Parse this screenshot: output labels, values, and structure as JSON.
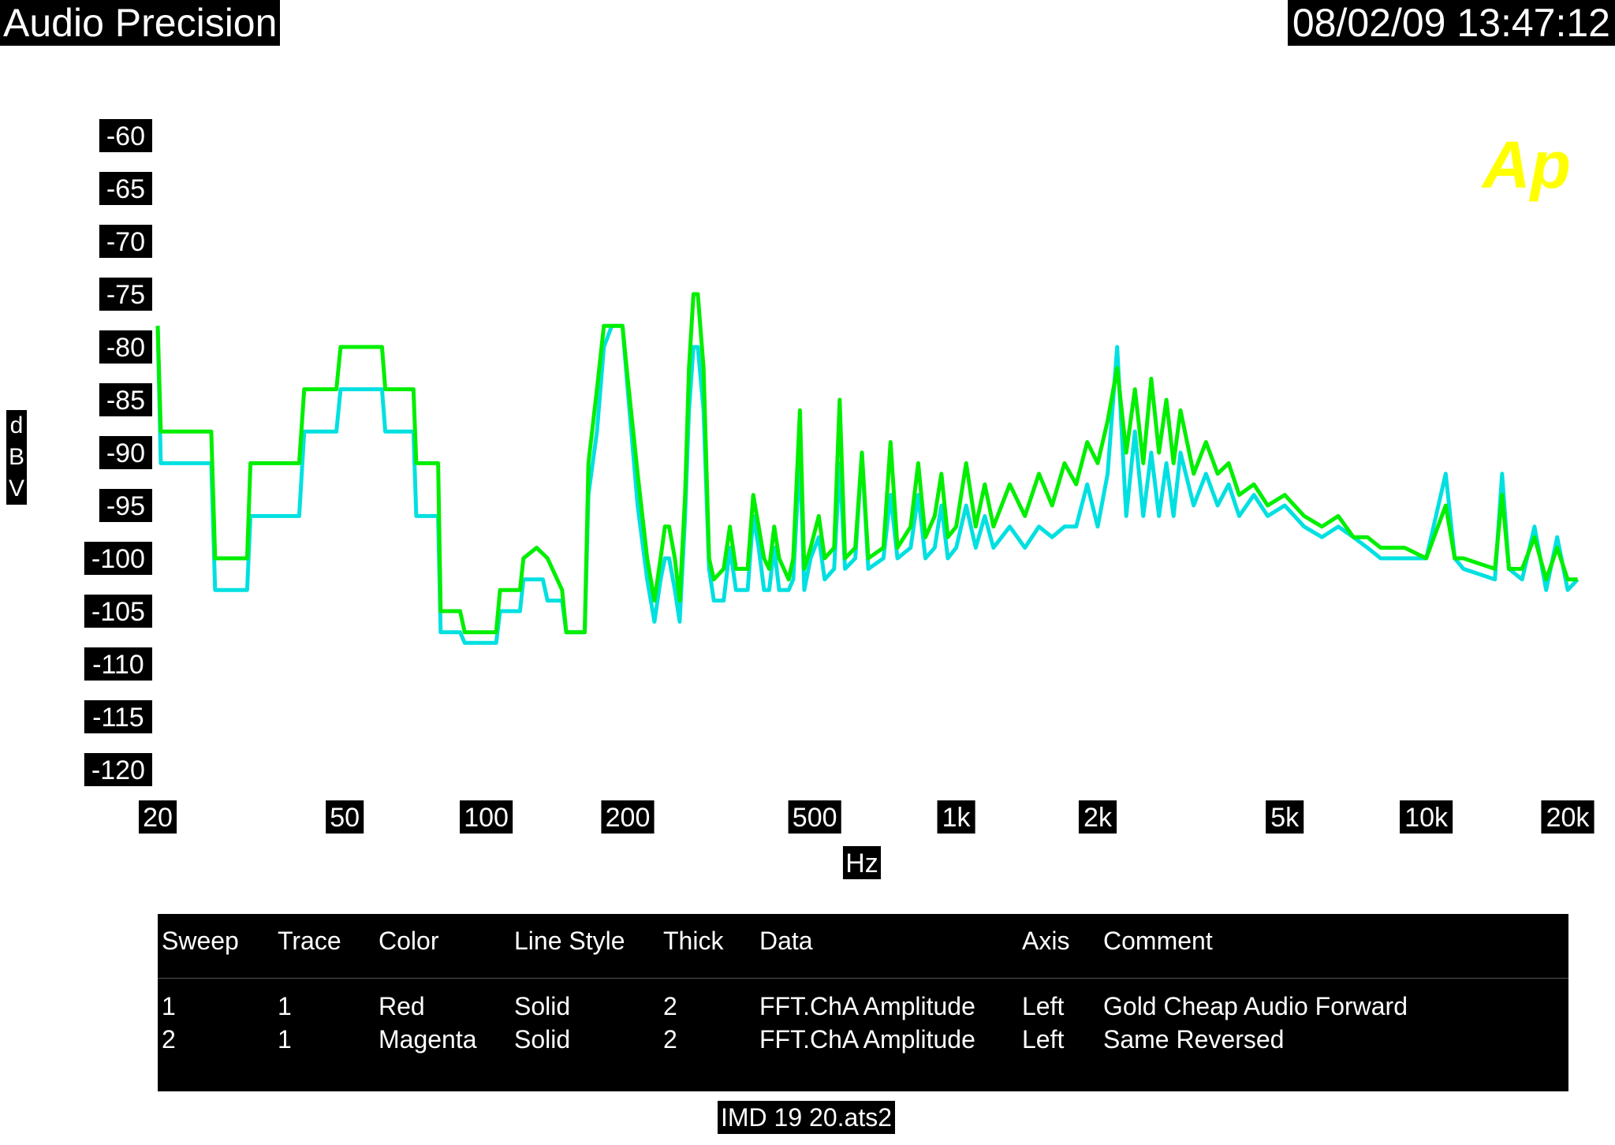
{
  "header": {
    "title": "Audio Precision",
    "timestamp": "08/02/09 13:47:12"
  },
  "logo": {
    "text": "Ap",
    "color": "#ffff00"
  },
  "footer": {
    "filename": "IMD 19 20.ats2"
  },
  "legend": {
    "columns": [
      "Sweep",
      "Trace",
      "Color",
      "Line Style",
      "Thick",
      "Data",
      "Axis",
      "Comment"
    ],
    "rows": [
      [
        "1",
        "1",
        "Red",
        "Solid",
        "2",
        "FFT.ChA Amplitude",
        "Left",
        "Gold Cheap Audio Forward"
      ],
      [
        "2",
        "1",
        "Magenta",
        "Solid",
        "2",
        "FFT.ChA Amplitude",
        "Left",
        "Same Reversed"
      ]
    ]
  },
  "chart_data": {
    "type": "line",
    "title": "",
    "xlabel": "Hz",
    "ylabel": "dBV",
    "xscale": "log",
    "xlim": [
      20,
      20000
    ],
    "ylim": [
      -120,
      -60
    ],
    "grid": false,
    "xticks": [
      {
        "v": 20,
        "label": "20"
      },
      {
        "v": 50,
        "label": "50"
      },
      {
        "v": 100,
        "label": "100"
      },
      {
        "v": 200,
        "label": "200"
      },
      {
        "v": 500,
        "label": "500"
      },
      {
        "v": 1000,
        "label": "1k"
      },
      {
        "v": 2000,
        "label": "2k"
      },
      {
        "v": 5000,
        "label": "5k"
      },
      {
        "v": 10000,
        "label": "10k"
      },
      {
        "v": 20000,
        "label": "20k"
      }
    ],
    "yticks": [
      -60,
      -65,
      -70,
      -75,
      -80,
      -85,
      -90,
      -95,
      -100,
      -105,
      -110,
      -115,
      -120
    ],
    "series": [
      {
        "color": "#00e0e0",
        "points": [
          [
            20,
            -78
          ],
          [
            20.3,
            -91
          ],
          [
            26,
            -91
          ],
          [
            26.5,
            -103
          ],
          [
            31,
            -103
          ],
          [
            31.5,
            -96
          ],
          [
            40,
            -96
          ],
          [
            41,
            -88
          ],
          [
            48,
            -88
          ],
          [
            49,
            -84
          ],
          [
            60,
            -84
          ],
          [
            61,
            -88
          ],
          [
            70,
            -88
          ],
          [
            71,
            -96
          ],
          [
            79,
            -96
          ],
          [
            80,
            -107
          ],
          [
            88,
            -107
          ],
          [
            90,
            -108
          ],
          [
            105,
            -108
          ],
          [
            107,
            -105
          ],
          [
            118,
            -105
          ],
          [
            120,
            -102
          ],
          [
            132,
            -102
          ],
          [
            135,
            -104
          ],
          [
            145,
            -104
          ],
          [
            148,
            -107
          ],
          [
            162,
            -107
          ],
          [
            165,
            -94
          ],
          [
            172,
            -88
          ],
          [
            178,
            -80
          ],
          [
            185,
            -78
          ],
          [
            195,
            -78
          ],
          [
            200,
            -84
          ],
          [
            210,
            -95
          ],
          [
            220,
            -102
          ],
          [
            228,
            -106
          ],
          [
            235,
            -102
          ],
          [
            240,
            -100
          ],
          [
            245,
            -100
          ],
          [
            252,
            -103
          ],
          [
            258,
            -106
          ],
          [
            265,
            -96
          ],
          [
            270,
            -86
          ],
          [
            276,
            -80
          ],
          [
            282,
            -80
          ],
          [
            290,
            -86
          ],
          [
            298,
            -101
          ],
          [
            305,
            -104
          ],
          [
            320,
            -104
          ],
          [
            330,
            -99
          ],
          [
            340,
            -103
          ],
          [
            360,
            -103
          ],
          [
            370,
            -96
          ],
          [
            380,
            -99
          ],
          [
            390,
            -103
          ],
          [
            400,
            -103
          ],
          [
            410,
            -99
          ],
          [
            420,
            -103
          ],
          [
            440,
            -103
          ],
          [
            450,
            -102
          ],
          [
            465,
            -90
          ],
          [
            475,
            -103
          ],
          [
            490,
            -100
          ],
          [
            510,
            -98
          ],
          [
            525,
            -102
          ],
          [
            550,
            -101
          ],
          [
            565,
            -91
          ],
          [
            580,
            -101
          ],
          [
            610,
            -100
          ],
          [
            630,
            -90
          ],
          [
            650,
            -101
          ],
          [
            700,
            -100
          ],
          [
            725,
            -94
          ],
          [
            750,
            -100
          ],
          [
            800,
            -99
          ],
          [
            830,
            -94
          ],
          [
            860,
            -100
          ],
          [
            900,
            -99
          ],
          [
            930,
            -95
          ],
          [
            960,
            -100
          ],
          [
            1000,
            -99
          ],
          [
            1050,
            -95
          ],
          [
            1100,
            -99
          ],
          [
            1150,
            -96
          ],
          [
            1200,
            -99
          ],
          [
            1300,
            -97
          ],
          [
            1400,
            -99
          ],
          [
            1500,
            -97
          ],
          [
            1600,
            -98
          ],
          [
            1700,
            -97
          ],
          [
            1800,
            -97
          ],
          [
            1900,
            -93
          ],
          [
            2000,
            -97
          ],
          [
            2100,
            -92
          ],
          [
            2200,
            -80
          ],
          [
            2300,
            -96
          ],
          [
            2400,
            -88
          ],
          [
            2500,
            -96
          ],
          [
            2600,
            -90
          ],
          [
            2700,
            -96
          ],
          [
            2800,
            -91
          ],
          [
            2900,
            -96
          ],
          [
            3000,
            -90
          ],
          [
            3200,
            -95
          ],
          [
            3400,
            -92
          ],
          [
            3600,
            -95
          ],
          [
            3800,
            -93
          ],
          [
            4000,
            -96
          ],
          [
            4300,
            -94
          ],
          [
            4600,
            -96
          ],
          [
            5000,
            -95
          ],
          [
            5500,
            -97
          ],
          [
            6000,
            -98
          ],
          [
            6500,
            -97
          ],
          [
            7000,
            -98
          ],
          [
            7500,
            -99
          ],
          [
            8000,
            -100
          ],
          [
            9000,
            -100
          ],
          [
            10000,
            -100
          ],
          [
            11000,
            -92
          ],
          [
            11500,
            -100
          ],
          [
            12000,
            -101
          ],
          [
            14000,
            -102
          ],
          [
            14500,
            -92
          ],
          [
            15000,
            -101
          ],
          [
            16000,
            -102
          ],
          [
            17000,
            -97
          ],
          [
            18000,
            -103
          ],
          [
            19000,
            -98
          ],
          [
            20000,
            -103
          ],
          [
            21000,
            -102
          ]
        ]
      },
      {
        "color": "#00ee00",
        "points": [
          [
            20,
            -78
          ],
          [
            20.3,
            -88
          ],
          [
            26,
            -88
          ],
          [
            26.5,
            -100
          ],
          [
            31,
            -100
          ],
          [
            31.5,
            -91
          ],
          [
            40,
            -91
          ],
          [
            41,
            -84
          ],
          [
            48,
            -84
          ],
          [
            49,
            -80
          ],
          [
            60,
            -80
          ],
          [
            61,
            -84
          ],
          [
            70,
            -84
          ],
          [
            71,
            -91
          ],
          [
            79,
            -91
          ],
          [
            80,
            -105
          ],
          [
            88,
            -105
          ],
          [
            90,
            -107
          ],
          [
            105,
            -107
          ],
          [
            107,
            -103
          ],
          [
            118,
            -103
          ],
          [
            120,
            -100
          ],
          [
            128,
            -99
          ],
          [
            135,
            -100
          ],
          [
            145,
            -103
          ],
          [
            148,
            -107
          ],
          [
            162,
            -107
          ],
          [
            165,
            -91
          ],
          [
            172,
            -84
          ],
          [
            178,
            -78
          ],
          [
            185,
            -78
          ],
          [
            195,
            -78
          ],
          [
            200,
            -83
          ],
          [
            210,
            -92
          ],
          [
            220,
            -100
          ],
          [
            228,
            -104
          ],
          [
            235,
            -100
          ],
          [
            240,
            -97
          ],
          [
            245,
            -97
          ],
          [
            252,
            -100
          ],
          [
            258,
            -104
          ],
          [
            265,
            -94
          ],
          [
            270,
            -82
          ],
          [
            276,
            -75
          ],
          [
            282,
            -75
          ],
          [
            290,
            -82
          ],
          [
            298,
            -100
          ],
          [
            305,
            -102
          ],
          [
            320,
            -101
          ],
          [
            330,
            -97
          ],
          [
            340,
            -101
          ],
          [
            360,
            -101
          ],
          [
            370,
            -94
          ],
          [
            380,
            -97
          ],
          [
            390,
            -100
          ],
          [
            400,
            -101
          ],
          [
            410,
            -97
          ],
          [
            420,
            -100
          ],
          [
            440,
            -102
          ],
          [
            450,
            -100
          ],
          [
            465,
            -86
          ],
          [
            475,
            -101
          ],
          [
            490,
            -99
          ],
          [
            510,
            -96
          ],
          [
            525,
            -100
          ],
          [
            550,
            -99
          ],
          [
            565,
            -85
          ],
          [
            580,
            -100
          ],
          [
            610,
            -99
          ],
          [
            630,
            -90
          ],
          [
            650,
            -100
          ],
          [
            700,
            -99
          ],
          [
            725,
            -89
          ],
          [
            750,
            -99
          ],
          [
            800,
            -97
          ],
          [
            830,
            -91
          ],
          [
            860,
            -98
          ],
          [
            900,
            -96
          ],
          [
            930,
            -92
          ],
          [
            960,
            -98
          ],
          [
            1000,
            -97
          ],
          [
            1050,
            -91
          ],
          [
            1100,
            -97
          ],
          [
            1150,
            -93
          ],
          [
            1200,
            -97
          ],
          [
            1300,
            -93
          ],
          [
            1400,
            -96
          ],
          [
            1500,
            -92
          ],
          [
            1600,
            -95
          ],
          [
            1700,
            -91
          ],
          [
            1800,
            -93
          ],
          [
            1900,
            -89
          ],
          [
            2000,
            -91
          ],
          [
            2100,
            -87
          ],
          [
            2200,
            -82
          ],
          [
            2300,
            -90
          ],
          [
            2400,
            -84
          ],
          [
            2500,
            -91
          ],
          [
            2600,
            -83
          ],
          [
            2700,
            -90
          ],
          [
            2800,
            -85
          ],
          [
            2900,
            -91
          ],
          [
            3000,
            -86
          ],
          [
            3200,
            -92
          ],
          [
            3400,
            -89
          ],
          [
            3600,
            -92
          ],
          [
            3800,
            -91
          ],
          [
            4000,
            -94
          ],
          [
            4300,
            -93
          ],
          [
            4600,
            -95
          ],
          [
            5000,
            -94
          ],
          [
            5500,
            -96
          ],
          [
            6000,
            -97
          ],
          [
            6500,
            -96
          ],
          [
            7000,
            -98
          ],
          [
            7500,
            -98
          ],
          [
            8000,
            -99
          ],
          [
            9000,
            -99
          ],
          [
            10000,
            -100
          ],
          [
            11000,
            -95
          ],
          [
            11500,
            -100
          ],
          [
            12000,
            -100
          ],
          [
            14000,
            -101
          ],
          [
            14500,
            -94
          ],
          [
            15000,
            -101
          ],
          [
            16000,
            -101
          ],
          [
            17000,
            -98
          ],
          [
            18000,
            -102
          ],
          [
            19000,
            -99
          ],
          [
            20000,
            -102
          ],
          [
            21000,
            -102
          ]
        ]
      }
    ]
  }
}
